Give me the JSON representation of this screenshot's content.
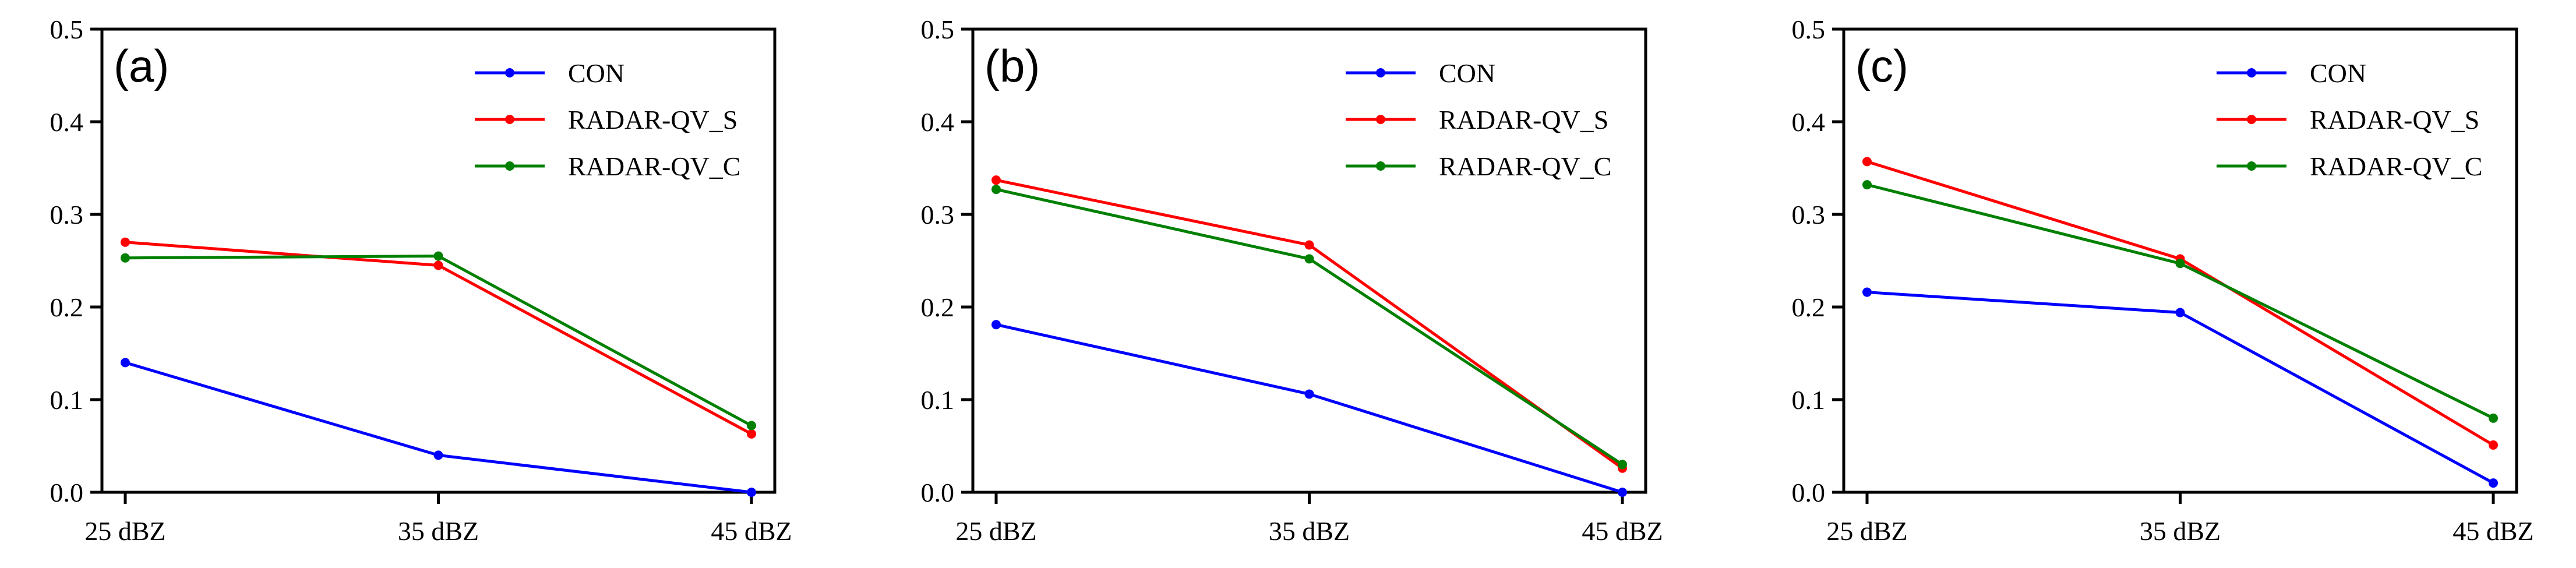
{
  "chart_data": [
    {
      "type": "line",
      "panel_label": "(a)",
      "categories": [
        "25 dBZ",
        "35 dBZ",
        "45 dBZ"
      ],
      "ylim": [
        0.0,
        0.5
      ],
      "yticks": [
        "0.0",
        "0.1",
        "0.2",
        "0.3",
        "0.4",
        "0.5"
      ],
      "legend_position": "top-right",
      "series": [
        {
          "name": "CON",
          "color": "#0000ff",
          "values": [
            0.14,
            0.04,
            0.0
          ]
        },
        {
          "name": "RADAR-QV_S",
          "color": "#ff0000",
          "values": [
            0.27,
            0.245,
            0.063
          ]
        },
        {
          "name": "RADAR-QV_C",
          "color": "#008000",
          "values": [
            0.253,
            0.255,
            0.072
          ]
        }
      ]
    },
    {
      "type": "line",
      "panel_label": "(b)",
      "categories": [
        "25 dBZ",
        "35 dBZ",
        "45 dBZ"
      ],
      "ylim": [
        0.0,
        0.5
      ],
      "yticks": [
        "0.0",
        "0.1",
        "0.2",
        "0.3",
        "0.4",
        "0.5"
      ],
      "legend_position": "top-right",
      "series": [
        {
          "name": "CON",
          "color": "#0000ff",
          "values": [
            0.181,
            0.106,
            0.0
          ]
        },
        {
          "name": "RADAR-QV_S",
          "color": "#ff0000",
          "values": [
            0.337,
            0.267,
            0.026
          ]
        },
        {
          "name": "RADAR-QV_C",
          "color": "#008000",
          "values": [
            0.327,
            0.252,
            0.03
          ]
        }
      ]
    },
    {
      "type": "line",
      "panel_label": "(c)",
      "categories": [
        "25 dBZ",
        "35 dBZ",
        "45 dBZ"
      ],
      "ylim": [
        0.0,
        0.5
      ],
      "yticks": [
        "0.0",
        "0.1",
        "0.2",
        "0.3",
        "0.4",
        "0.5"
      ],
      "legend_position": "top-right",
      "series": [
        {
          "name": "CON",
          "color": "#0000ff",
          "values": [
            0.216,
            0.194,
            0.01
          ]
        },
        {
          "name": "RADAR-QV_S",
          "color": "#ff0000",
          "values": [
            0.357,
            0.252,
            0.051
          ]
        },
        {
          "name": "RADAR-QV_C",
          "color": "#008000",
          "values": [
            0.332,
            0.247,
            0.08
          ]
        }
      ]
    }
  ]
}
